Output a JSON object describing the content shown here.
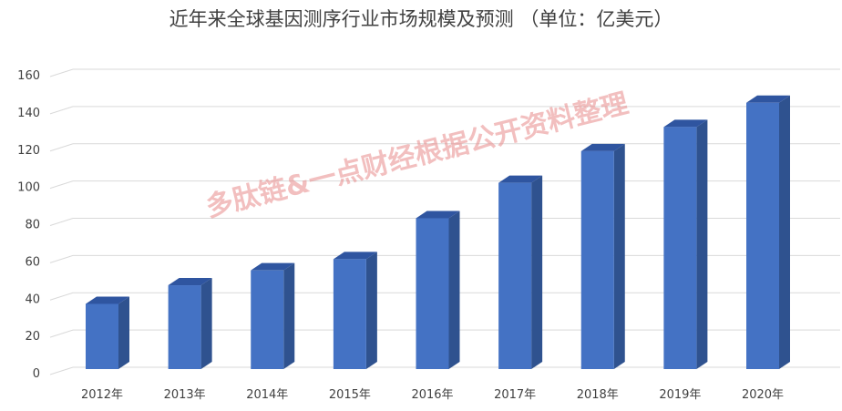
{
  "chart_data": {
    "type": "bar",
    "title": "近年来全球基因测序行业市场规模及预测 （单位：亿美元）",
    "categories": [
      "2012年",
      "2013年",
      "2014年",
      "2015年",
      "2016年",
      "2017年",
      "2018年",
      "2019年",
      "2020年"
    ],
    "values": [
      35,
      45,
      53,
      59,
      81,
      100,
      117,
      130,
      143
    ],
    "ylim": [
      0,
      160
    ],
    "yticks": [
      0,
      20,
      40,
      60,
      80,
      100,
      120,
      140,
      160
    ],
    "grid": true,
    "legend": "none",
    "style": "3d-column",
    "colors": {
      "bar_front": "#4472C4",
      "bar_side": "#2F528F",
      "bar_top": "#2F55A0",
      "grid": "#D9D9D9"
    }
  },
  "watermark": {
    "text": "多肽链&一点财经根据公开资料整理"
  }
}
